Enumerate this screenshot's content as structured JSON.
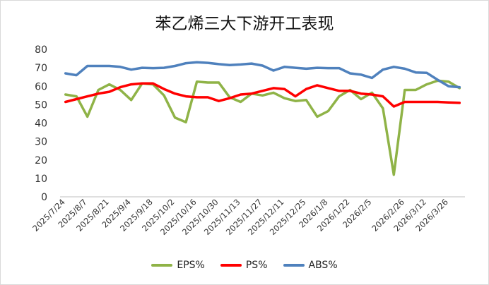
{
  "chart_data": {
    "type": "line",
    "title": "苯乙烯三大下游开工表现",
    "xlabel": "",
    "ylabel": "",
    "ylim": [
      0,
      80
    ],
    "yticks": [
      0,
      10,
      20,
      30,
      40,
      50,
      60,
      70,
      80
    ],
    "grid": false,
    "legend_position": "bottom",
    "x_tick_labels": [
      "2025/7/24",
      "2025/8/7",
      "2025/8/21",
      "2025/9/4",
      "2025/9/18",
      "2025/10/2",
      "2025/10/16",
      "2025/10/30",
      "2025/11/13",
      "2025/11/27",
      "2025/12/11",
      "2025/12/25",
      "2026/1/8",
      "2026/1/22",
      "2026/2/5",
      "2026/2/26",
      "2026/3/12",
      "2026/3/26"
    ],
    "x": [
      "2025/7/24",
      "2025/7/31",
      "2025/8/7",
      "2025/8/14",
      "2025/8/21",
      "2025/8/28",
      "2025/9/4",
      "2025/9/11",
      "2025/9/18",
      "2025/9/25",
      "2025/10/2",
      "2025/10/9",
      "2025/10/16",
      "2025/10/23",
      "2025/10/30",
      "2025/11/6",
      "2025/11/13",
      "2025/11/20",
      "2025/11/27",
      "2025/12/4",
      "2025/12/11",
      "2025/12/18",
      "2025/12/25",
      "2026/1/1",
      "2026/1/8",
      "2026/1/15",
      "2026/1/22",
      "2026/1/29",
      "2026/2/5",
      "2026/2/12",
      "2026/2/19",
      "2026/2/26",
      "2026/3/5",
      "2026/3/12",
      "2026/3/19",
      "2026/3/26",
      "2026/4/2"
    ],
    "series": [
      {
        "name": "EPS%",
        "color": "#8fb347",
        "values": [
          55.5,
          54.5,
          43.5,
          58,
          61,
          58,
          52.5,
          61.5,
          61,
          55,
          43,
          40.5,
          62.5,
          62,
          62,
          54,
          51.5,
          56,
          55,
          56.5,
          53.5,
          52,
          52.5,
          43.5,
          46.5,
          54.5,
          58,
          53,
          56.5,
          48,
          12,
          58,
          58,
          61,
          63,
          62.5,
          59
        ]
      },
      {
        "name": "PS%",
        "color": "#ff0000",
        "values": [
          51.5,
          53,
          54.5,
          56,
          57,
          59.5,
          61,
          61.5,
          61.5,
          58.5,
          56,
          54.5,
          54,
          54,
          52,
          53.5,
          55.5,
          56,
          57.5,
          59,
          58.5,
          54.5,
          58.5,
          60.5,
          59,
          57.5,
          57.5,
          56,
          55.5,
          54.5,
          49,
          51.5,
          51.5,
          51.5,
          51.5,
          51.2,
          51
        ]
      },
      {
        "name": "ABS%",
        "color": "#4f81bd",
        "values": [
          67,
          66,
          71,
          71,
          71,
          70.5,
          69,
          70,
          69.8,
          70,
          71,
          72.5,
          73,
          72.7,
          72,
          71.5,
          71.8,
          72.3,
          71.2,
          68.5,
          70.5,
          70,
          69.5,
          70,
          69.8,
          69.8,
          67,
          66.3,
          64.5,
          69,
          70.5,
          69.5,
          67.5,
          67.3,
          63.5,
          60,
          59.5
        ]
      }
    ]
  }
}
